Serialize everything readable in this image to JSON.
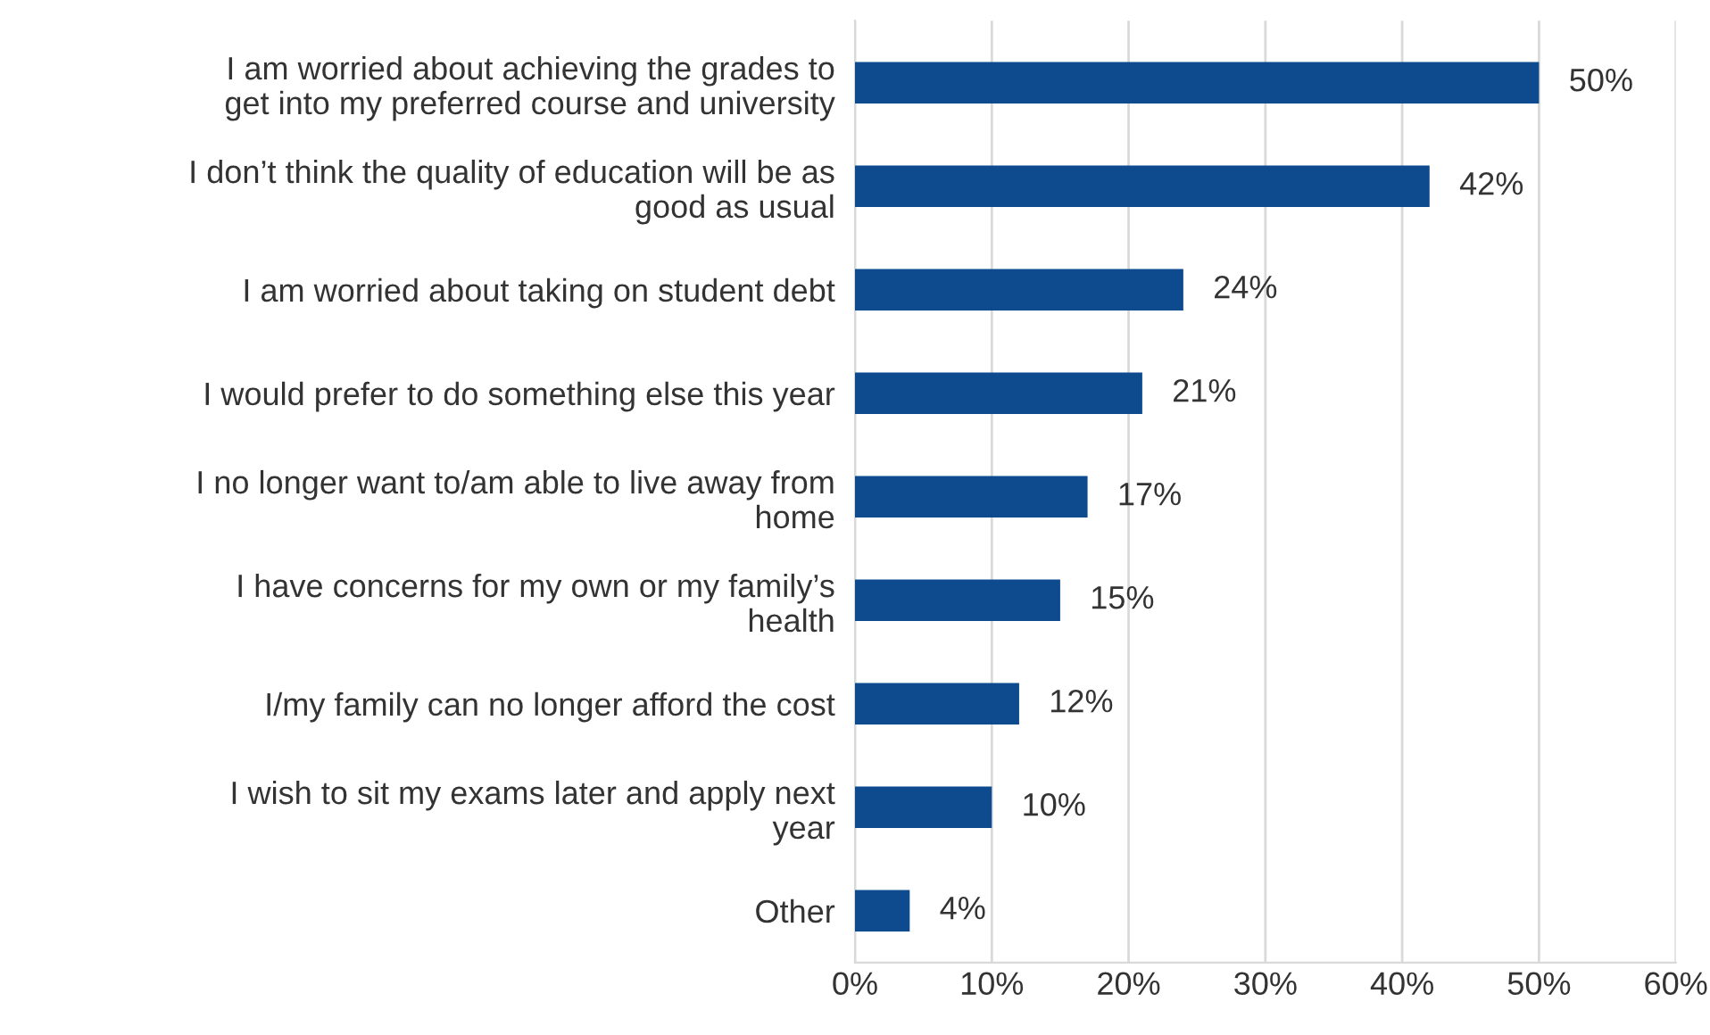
{
  "chart_data": {
    "type": "bar",
    "orientation": "horizontal",
    "categories": [
      "I am worried about achieving the grades to\nget into my preferred course and university",
      "I don’t think the quality of education will be as\ngood as usual",
      "I am worried about taking on student debt",
      "I would prefer to do something else this year",
      "I no longer want to/am able to live away from\nhome",
      "I have concerns for my own or my family’s\nhealth",
      "I/my family can no longer afford the cost",
      "I wish to sit my exams later and apply next\nyear",
      "Other"
    ],
    "values": [
      50,
      42,
      24,
      21,
      17,
      15,
      12,
      10,
      4
    ],
    "value_labels": [
      "50%",
      "42%",
      "24%",
      "21%",
      "17%",
      "15%",
      "12%",
      "10%",
      "4%"
    ],
    "color": "#0d4a8e",
    "xlim": [
      0,
      60
    ],
    "xticks": [
      {
        "value": 0,
        "label": "0%"
      },
      {
        "value": 10,
        "label": "10%"
      },
      {
        "value": 20,
        "label": "20%"
      },
      {
        "value": 30,
        "label": "30%"
      },
      {
        "value": 40,
        "label": "40%"
      },
      {
        "value": 50,
        "label": "50%"
      },
      {
        "value": 60,
        "label": "60%"
      }
    ],
    "grid": "x",
    "legend": false
  }
}
